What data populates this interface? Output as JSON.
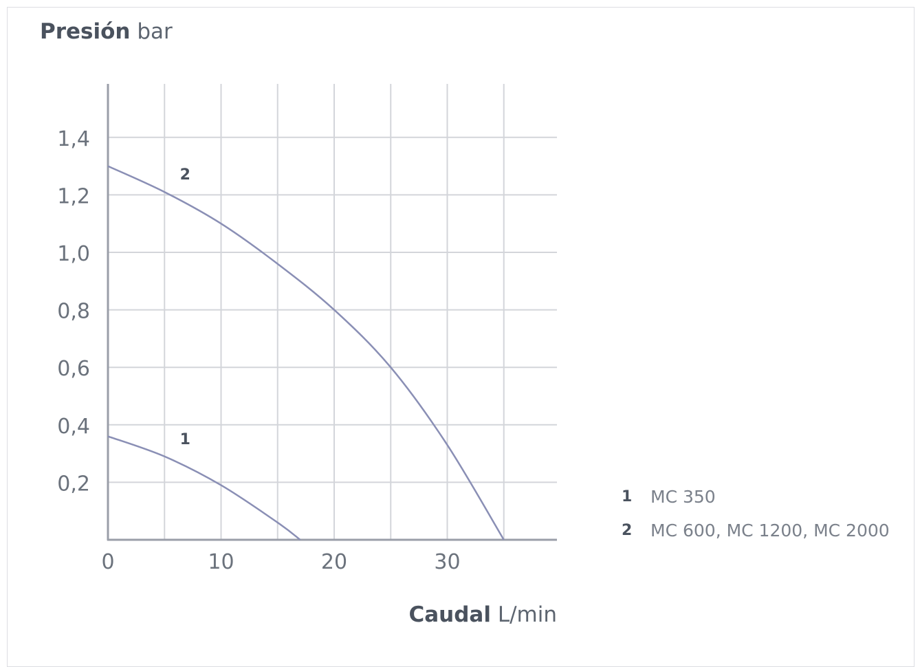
{
  "chart_data": {
    "type": "line",
    "ylabel_bold": "Presión",
    "ylabel_unit": "bar",
    "xlabel_bold": "Caudal",
    "xlabel_unit": "L/min",
    "xlim": [
      0,
      40
    ],
    "ylim": [
      0,
      1.6
    ],
    "x_ticks": [
      "0",
      "10",
      "20",
      "30"
    ],
    "y_ticks": [
      "0,2",
      "0,4",
      "0,6",
      "0,8",
      "1,0",
      "1,2",
      "1,4"
    ],
    "grid": true,
    "series": [
      {
        "name": "1",
        "x": [
          0,
          5,
          10,
          15,
          17
        ],
        "y": [
          0.36,
          0.29,
          0.19,
          0.06,
          0.0
        ]
      },
      {
        "name": "2",
        "x": [
          0,
          5,
          10,
          15,
          20,
          25,
          30,
          35
        ],
        "y": [
          1.3,
          1.21,
          1.1,
          0.96,
          0.8,
          0.6,
          0.33,
          0.0
        ]
      }
    ],
    "legend": [
      {
        "key": "1",
        "label": "MC 350"
      },
      {
        "key": "2",
        "label": "MC 600, MC 1200, MC 2000"
      }
    ],
    "colors": {
      "curve": "#8a8fb5",
      "grid": "#d3d5da",
      "axis": "#9a9ea8",
      "text": "#6b727c"
    }
  }
}
